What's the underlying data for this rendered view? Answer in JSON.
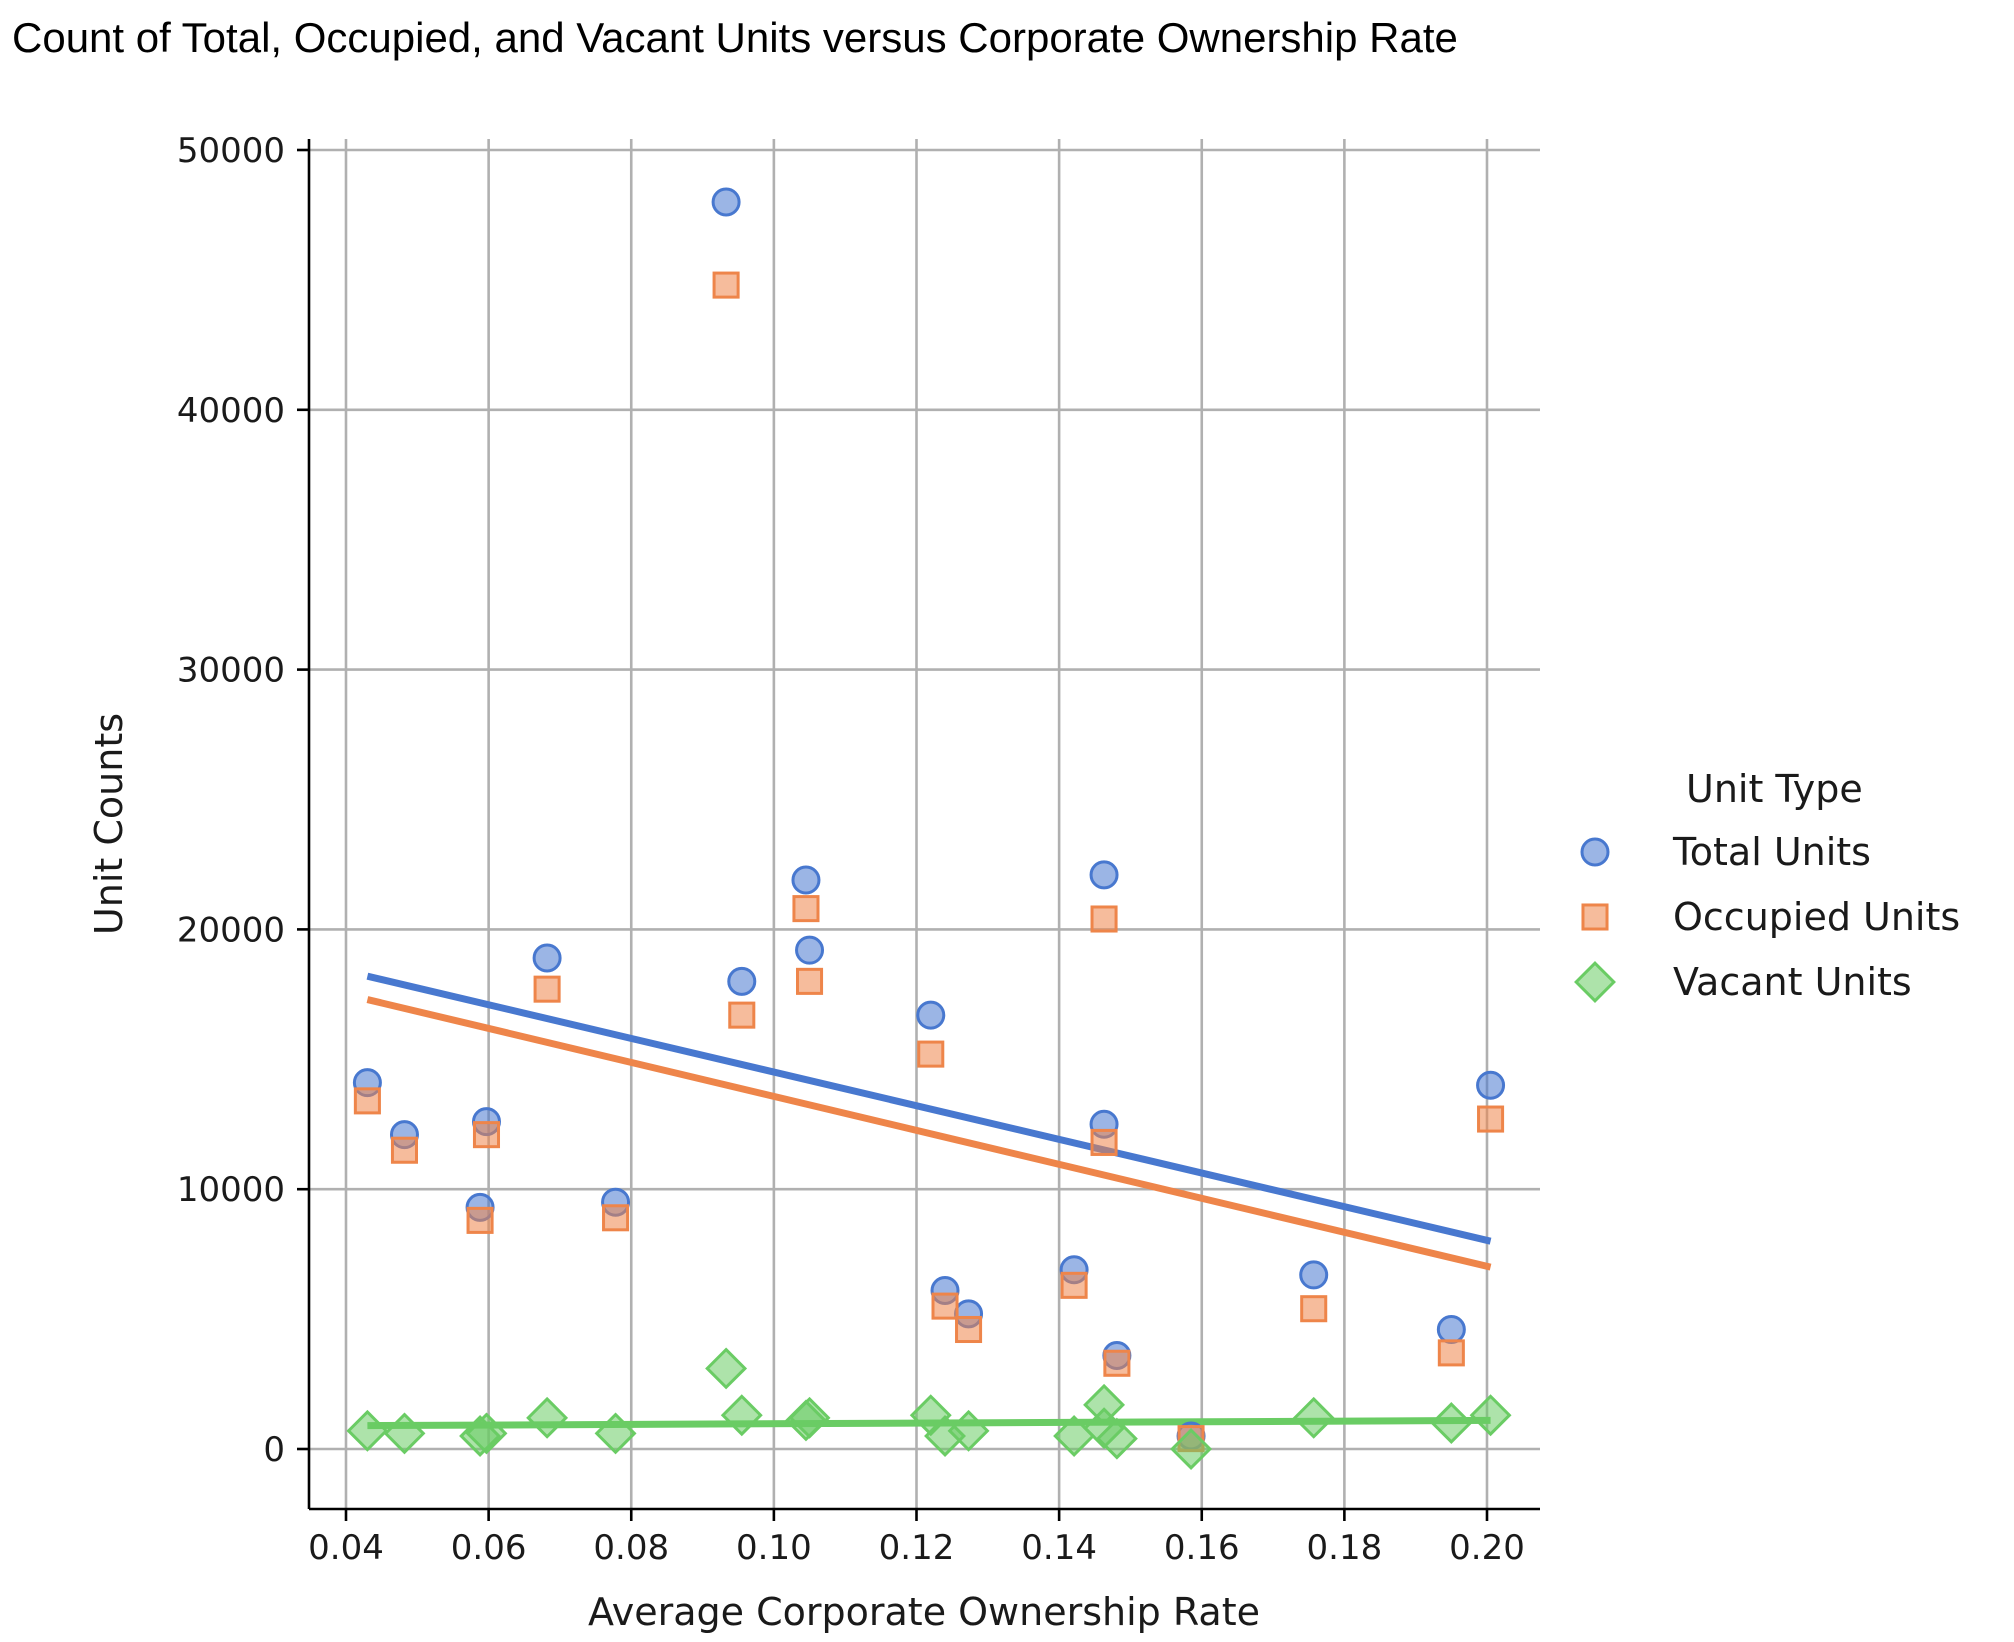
{
  "chart_data": {
    "type": "scatter",
    "title": "Count of Total, Occupied, and Vacant Units versus Corporate Ownership Rate",
    "xlabel": "Average Corporate Ownership Rate",
    "ylabel": "Unit Counts",
    "xlim": [
      0.0355,
      0.2085
    ],
    "ylim": [
      -2350,
      50400
    ],
    "xticks": [
      "0.04",
      "0.06",
      "0.08",
      "0.10",
      "0.12",
      "0.14",
      "0.16",
      "0.18",
      "0.20"
    ],
    "yticks": [
      "0",
      "10000",
      "20000",
      "30000",
      "40000",
      "50000"
    ],
    "grid": true,
    "legend": {
      "title": "Unit Type",
      "placement": "right"
    },
    "series": [
      {
        "name": "Total Units",
        "color": "#4878cf",
        "marker": "circle",
        "x": [
          0.043,
          0.0482,
          0.0588,
          0.0597,
          0.0682,
          0.0778,
          0.0933,
          0.0955,
          0.1045,
          0.105,
          0.122,
          0.124,
          0.1273,
          0.1421,
          0.1463,
          0.1463,
          0.1481,
          0.1585,
          0.1757,
          0.195,
          0.2005
        ],
        "y": [
          14100,
          12100,
          9300,
          12600,
          18900,
          9500,
          48000,
          18000,
          21900,
          19200,
          16700,
          6100,
          5200,
          6900,
          22100,
          12500,
          3600,
          500,
          6700,
          4600,
          14000
        ]
      },
      {
        "name": "Occupied Units",
        "color": "#ee854a",
        "marker": "square",
        "x": [
          0.043,
          0.0482,
          0.0588,
          0.0597,
          0.0682,
          0.0778,
          0.0933,
          0.0955,
          0.1045,
          0.105,
          0.122,
          0.124,
          0.1273,
          0.1421,
          0.1463,
          0.1463,
          0.1481,
          0.1585,
          0.1757,
          0.195,
          0.2005
        ],
        "y": [
          13400,
          11500,
          8800,
          12100,
          17700,
          8900,
          44800,
          16700,
          20800,
          18000,
          15200,
          5500,
          4600,
          6300,
          20400,
          11800,
          3300,
          400,
          5400,
          3700,
          12700
        ]
      },
      {
        "name": "Vacant Units",
        "color": "#6acc64",
        "marker": "diamond",
        "x": [
          0.043,
          0.0482,
          0.0588,
          0.0597,
          0.0682,
          0.0778,
          0.0933,
          0.0955,
          0.1045,
          0.105,
          0.122,
          0.124,
          0.1273,
          0.1421,
          0.1463,
          0.1463,
          0.1481,
          0.1585,
          0.1757,
          0.195,
          0.2005
        ],
        "y": [
          700,
          600,
          500,
          600,
          1200,
          600,
          3100,
          1300,
          1100,
          1200,
          1300,
          500,
          700,
          500,
          1700,
          800,
          400,
          0,
          1200,
          1000,
          1300
        ]
      }
    ],
    "trendlines": [
      {
        "series": "Total Units",
        "color": "#4878cf",
        "x": [
          0.043,
          0.2005
        ],
        "y": [
          18200,
          8000
        ]
      },
      {
        "series": "Occupied Units",
        "color": "#ee854a",
        "x": [
          0.043,
          0.2005
        ],
        "y": [
          17300,
          7000
        ]
      },
      {
        "series": "Vacant Units",
        "color": "#6acc64",
        "x": [
          0.043,
          0.2005
        ],
        "y": [
          900,
          1100
        ]
      }
    ]
  }
}
